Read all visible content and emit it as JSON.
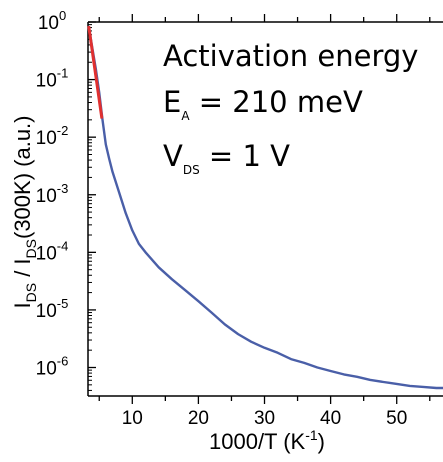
{
  "chart_data": {
    "type": "line",
    "xlabel": {
      "main": "1000/T (K",
      "sup": "-1",
      "tail": ")"
    },
    "ylabel": {
      "i1": "I",
      "s1": "DS",
      "mid": " / I",
      "s2": "DS",
      "tail": "(300K) (a.u.)"
    },
    "y_scale": "log",
    "xlim": [
      3.3,
      57
    ],
    "ylim": [
      3.2e-07,
      1
    ],
    "x_ticks": [
      {
        "value": 10,
        "label": "10"
      },
      {
        "value": 20,
        "label": "20"
      },
      {
        "value": 30,
        "label": "30"
      },
      {
        "value": 40,
        "label": "40"
      },
      {
        "value": 50,
        "label": "50"
      }
    ],
    "y_ticks": [
      {
        "value": 1,
        "base": "10",
        "exp": "0"
      },
      {
        "value": 0.1,
        "base": "10",
        "exp": "-1"
      },
      {
        "value": 0.01,
        "base": "10",
        "exp": "-2"
      },
      {
        "value": 0.001,
        "base": "10",
        "exp": "-3"
      },
      {
        "value": 0.0001,
        "base": "10",
        "exp": "-4"
      },
      {
        "value": 1e-05,
        "base": "10",
        "exp": "-5"
      },
      {
        "value": 1e-06,
        "base": "10",
        "exp": "-6"
      }
    ],
    "grid": false,
    "series": [
      {
        "color": "#4a5fa8",
        "x": [
          3.4,
          4.0,
          4.5,
          5.0,
          5.5,
          6.0,
          6.5,
          7.0,
          8.0,
          9.0,
          10.0,
          11.0,
          12.0,
          14.0,
          16.0,
          18.0,
          20.0,
          22.0,
          24.0,
          26.0,
          28.0,
          30.0,
          32.0,
          34.0,
          36.0,
          38.0,
          40.0,
          42.0,
          44.0,
          46.0,
          48.0,
          50.0,
          52.0,
          54.0,
          56.0,
          57.0
        ],
        "y": [
          0.85,
          0.33,
          0.15,
          0.06,
          0.02,
          0.0075,
          0.0042,
          0.0025,
          0.0011,
          0.00048,
          0.00024,
          0.00014,
          0.0001,
          5.5e-05,
          3.4e-05,
          2.2e-05,
          1.42e-05,
          9e-06,
          5.6e-06,
          3.8e-06,
          2.8e-06,
          2.2e-06,
          1.8e-06,
          1.4e-06,
          1.2e-06,
          1e-06,
          8.7e-07,
          7.6e-07,
          6.9e-07,
          6.1e-07,
          5.6e-07,
          5.2e-07,
          4.8e-07,
          4.6e-07,
          4.4e-07,
          4.4e-07
        ]
      },
      {
        "color": "#e03030",
        "x": [
          3.4,
          5.4
        ],
        "y": [
          0.85,
          0.021
        ]
      }
    ],
    "annotations": {
      "line1": "Activation energy",
      "line2_main": "E",
      "line2_sub": "A",
      "line2_tail": " = 210 meV",
      "line3_main": "V",
      "line3_sub": "DS",
      "line3_tail": " = 1 V"
    }
  }
}
